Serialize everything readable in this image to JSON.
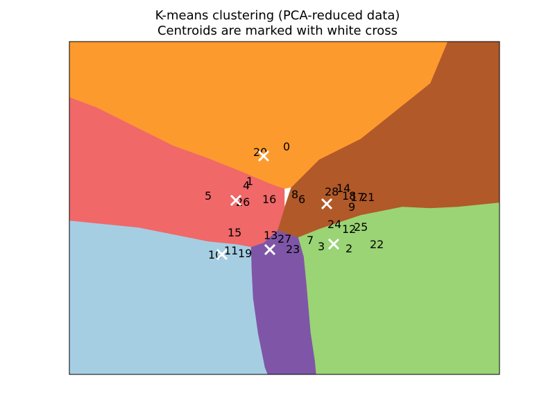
{
  "chart_data": {
    "type": "scatter",
    "title": "K-means clustering (PCA-reduced data)",
    "subtitle": "Centroids are marked with white cross",
    "xlabel": "",
    "ylabel": "",
    "xlim": [
      0,
      620
    ],
    "ylim": [
      0,
      480
    ],
    "axis_ticks_shown": false,
    "grid": false,
    "region_colors": {
      "orange": "#fd9a2e",
      "brown": "#b15928",
      "salmon": "#f06868",
      "lightblue": "#a6cee3",
      "purple": "#7f56a7",
      "green": "#9ad475"
    },
    "regions": [
      {
        "color": "lightblue",
        "points": [
          [
            0,
            258
          ],
          [
            40,
            262
          ],
          [
            100,
            268
          ],
          [
            150,
            278
          ],
          [
            200,
            288
          ],
          [
            240,
            292
          ],
          [
            262,
            296
          ],
          [
            263,
            330
          ],
          [
            265,
            370
          ],
          [
            272,
            420
          ],
          [
            282,
            470
          ],
          [
            286,
            480
          ],
          [
            0,
            480
          ]
        ]
      },
      {
        "color": "purple",
        "points": [
          [
            262,
            296
          ],
          [
            280,
            290
          ],
          [
            300,
            272
          ],
          [
            330,
            282
          ],
          [
            338,
            310
          ],
          [
            342,
            350
          ],
          [
            348,
            420
          ],
          [
            354,
            460
          ],
          [
            356,
            480
          ],
          [
            286,
            480
          ],
          [
            282,
            470
          ],
          [
            272,
            420
          ],
          [
            265,
            370
          ],
          [
            263,
            330
          ]
        ]
      },
      {
        "color": "green",
        "points": [
          [
            330,
            282
          ],
          [
            360,
            270
          ],
          [
            420,
            250
          ],
          [
            480,
            238
          ],
          [
            520,
            240
          ],
          [
            560,
            238
          ],
          [
            620,
            232
          ],
          [
            620,
            480
          ],
          [
            356,
            480
          ],
          [
            354,
            460
          ],
          [
            348,
            420
          ],
          [
            342,
            350
          ],
          [
            338,
            310
          ]
        ]
      },
      {
        "color": "brown",
        "points": [
          [
            300,
            272
          ],
          [
            310,
            240
          ],
          [
            320,
            210
          ],
          [
            360,
            170
          ],
          [
            420,
            140
          ],
          [
            470,
            100
          ],
          [
            520,
            60
          ],
          [
            545,
            0
          ],
          [
            620,
            0
          ],
          [
            620,
            232
          ],
          [
            560,
            238
          ],
          [
            520,
            240
          ],
          [
            480,
            238
          ],
          [
            420,
            250
          ],
          [
            360,
            270
          ],
          [
            330,
            282
          ]
        ]
      },
      {
        "color": "salmon",
        "points": [
          [
            0,
            80
          ],
          [
            40,
            95
          ],
          [
            100,
            125
          ],
          [
            150,
            150
          ],
          [
            200,
            168
          ],
          [
            250,
            188
          ],
          [
            290,
            205
          ],
          [
            310,
            212
          ],
          [
            310,
            240
          ],
          [
            300,
            272
          ],
          [
            280,
            290
          ],
          [
            262,
            296
          ],
          [
            240,
            292
          ],
          [
            200,
            288
          ],
          [
            150,
            278
          ],
          [
            100,
            268
          ],
          [
            40,
            262
          ],
          [
            0,
            258
          ]
        ]
      },
      {
        "color": "orange",
        "points": [
          [
            0,
            0
          ],
          [
            545,
            0
          ],
          [
            520,
            60
          ],
          [
            470,
            100
          ],
          [
            420,
            140
          ],
          [
            360,
            170
          ],
          [
            320,
            210
          ],
          [
            310,
            212
          ],
          [
            290,
            205
          ],
          [
            250,
            188
          ],
          [
            200,
            168
          ],
          [
            150,
            150
          ],
          [
            100,
            125
          ],
          [
            40,
            95
          ],
          [
            0,
            80
          ]
        ]
      }
    ],
    "points": [
      {
        "label": "0",
        "x": 308,
        "y": 157
      },
      {
        "label": "20",
        "x": 265,
        "y": 165
      },
      {
        "label": "1",
        "x": 255,
        "y": 207
      },
      {
        "label": "4",
        "x": 250,
        "y": 213
      },
      {
        "label": "5",
        "x": 195,
        "y": 228
      },
      {
        "label": "26",
        "x": 240,
        "y": 237
      },
      {
        "label": "16",
        "x": 278,
        "y": 233
      },
      {
        "label": "8",
        "x": 320,
        "y": 226
      },
      {
        "label": "6",
        "x": 330,
        "y": 233
      },
      {
        "label": "28",
        "x": 368,
        "y": 222
      },
      {
        "label": "14",
        "x": 385,
        "y": 217
      },
      {
        "label": "18",
        "x": 393,
        "y": 228
      },
      {
        "label": "17",
        "x": 405,
        "y": 230
      },
      {
        "label": "21",
        "x": 420,
        "y": 230
      },
      {
        "label": "9",
        "x": 402,
        "y": 244
      },
      {
        "label": "24",
        "x": 372,
        "y": 269
      },
      {
        "label": "25",
        "x": 410,
        "y": 273
      },
      {
        "label": "12",
        "x": 393,
        "y": 276
      },
      {
        "label": "7",
        "x": 342,
        "y": 292
      },
      {
        "label": "3",
        "x": 358,
        "y": 301
      },
      {
        "label": "2",
        "x": 398,
        "y": 304
      },
      {
        "label": "22",
        "x": 433,
        "y": 298
      },
      {
        "label": "15",
        "x": 228,
        "y": 281
      },
      {
        "label": "13",
        "x": 280,
        "y": 285
      },
      {
        "label": "27",
        "x": 300,
        "y": 290
      },
      {
        "label": "23",
        "x": 312,
        "y": 305
      },
      {
        "label": "10",
        "x": 200,
        "y": 313
      },
      {
        "label": "11",
        "x": 223,
        "y": 307
      },
      {
        "label": "19",
        "x": 243,
        "y": 311
      }
    ],
    "centroids": [
      {
        "cluster": "orange",
        "x": 280,
        "y": 165
      },
      {
        "cluster": "salmon",
        "x": 240,
        "y": 229
      },
      {
        "cluster": "brown",
        "x": 371,
        "y": 234
      },
      {
        "cluster": "green",
        "x": 381,
        "y": 292
      },
      {
        "cluster": "purple",
        "x": 289,
        "y": 300
      },
      {
        "cluster": "lightblue",
        "x": 220,
        "y": 307
      }
    ]
  }
}
